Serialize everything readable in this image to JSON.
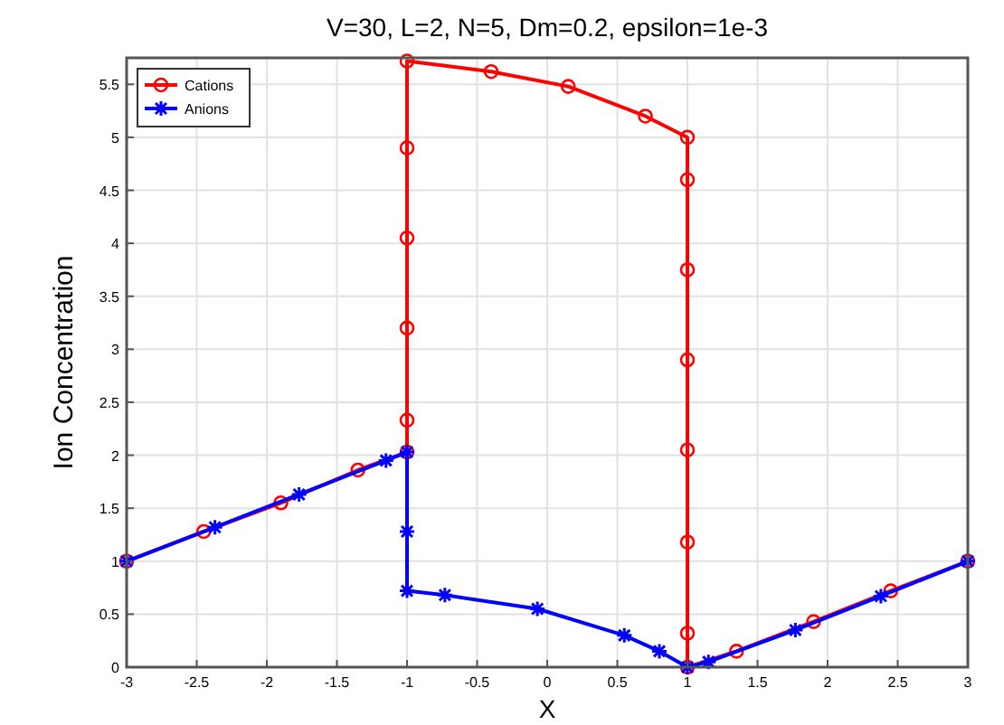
{
  "chart_data": {
    "type": "line",
    "title": "V=30, L=2, N=5, Dm=0.2, epsilon=1e-3",
    "xlabel": "X",
    "ylabel": "Ion Concentration",
    "xlim": [
      -3,
      3
    ],
    "ylim": [
      0,
      5.75
    ],
    "xticks": [
      -3,
      -2.5,
      -2,
      -1.5,
      -1,
      -0.5,
      0,
      0.5,
      1,
      1.5,
      2,
      2.5,
      3
    ],
    "yticks": [
      0,
      0.5,
      1,
      1.5,
      2,
      2.5,
      3,
      3.5,
      4,
      4.5,
      5,
      5.5
    ],
    "grid": true,
    "legend": "top left",
    "line_style": "solid",
    "series": [
      {
        "name": "Cations",
        "color": "#ff0000",
        "marker": "circle",
        "x": [
          -3,
          -2.45,
          -1.9,
          -1.35,
          -1,
          -1,
          -1,
          -1,
          -1,
          -1,
          -0.4,
          0.15,
          0.7,
          1,
          1,
          1,
          1,
          1,
          1,
          1,
          1,
          1.35,
          1.9,
          2.45,
          3
        ],
        "values": [
          1.0,
          1.28,
          1.55,
          1.86,
          2.03,
          2.33,
          3.2,
          4.05,
          4.9,
          5.72,
          5.62,
          5.48,
          5.2,
          5.0,
          4.6,
          3.75,
          2.9,
          2.05,
          1.18,
          0.32,
          0,
          0.15,
          0.43,
          0.72,
          1.0
        ]
      },
      {
        "name": "Anions",
        "color": "#0000ff",
        "marker": "cross",
        "x": [
          -3,
          -2.37,
          -1.77,
          -1.15,
          -1,
          -1,
          -1,
          -0.73,
          -0.07,
          0.55,
          0.8,
          1,
          1.15,
          1.77,
          2.38,
          3
        ],
        "values": [
          1.0,
          1.32,
          1.63,
          1.95,
          2.03,
          1.28,
          0.72,
          0.68,
          0.55,
          0.3,
          0.15,
          0,
          0.05,
          0.35,
          0.67,
          1.0
        ]
      }
    ]
  }
}
